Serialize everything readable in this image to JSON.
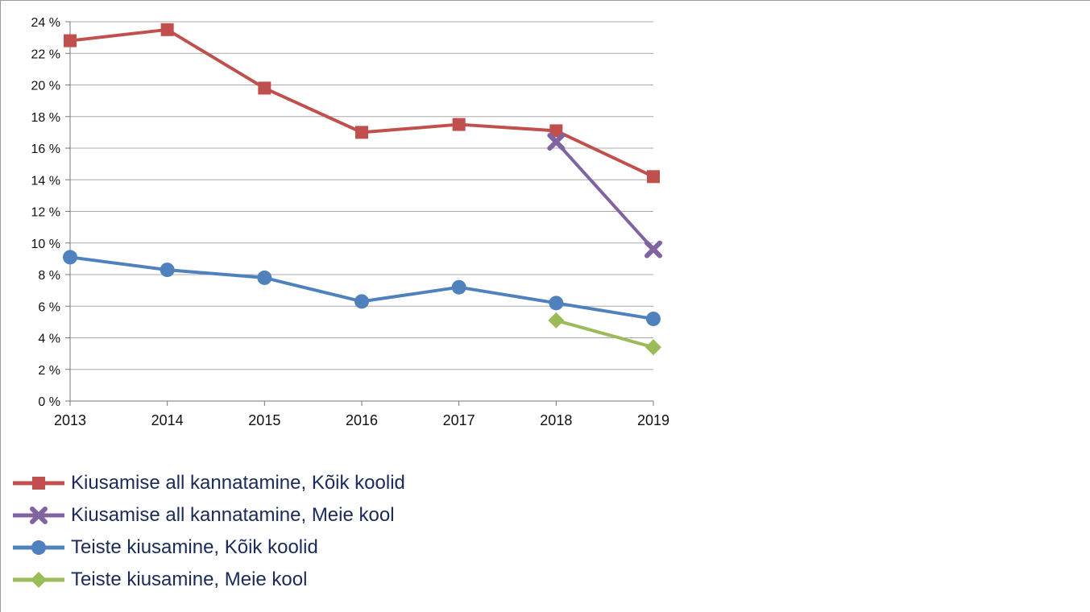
{
  "chart_data": {
    "type": "line",
    "title": "",
    "xlabel": "",
    "ylabel": "",
    "ylim": [
      0,
      24
    ],
    "y_step": 2,
    "y_tick_suffix": " %",
    "x": [
      2013,
      2014,
      2015,
      2016,
      2017,
      2018,
      2019
    ],
    "grid": "horizontal",
    "legend_position": "bottom-left",
    "series": [
      {
        "name": "Kiusamise all kannatamine, Kõik koolid",
        "color": "#c0504d",
        "marker": "square",
        "values": [
          22.8,
          23.5,
          19.8,
          17.0,
          17.5,
          17.1,
          14.2
        ]
      },
      {
        "name": "Kiusamise all kannatamine, Meie kool",
        "color": "#8064a2",
        "marker": "x",
        "values": [
          null,
          null,
          null,
          null,
          null,
          16.4,
          9.6
        ]
      },
      {
        "name": "Teiste kiusamine, Kõik koolid",
        "color": "#4f81bd",
        "marker": "circle",
        "values": [
          9.1,
          8.3,
          7.8,
          6.3,
          7.2,
          6.2,
          5.2
        ]
      },
      {
        "name": "Teiste kiusamine, Meie kool",
        "color": "#9bbb59",
        "marker": "diamond",
        "values": [
          null,
          null,
          null,
          null,
          null,
          5.1,
          3.4
        ]
      }
    ]
  }
}
